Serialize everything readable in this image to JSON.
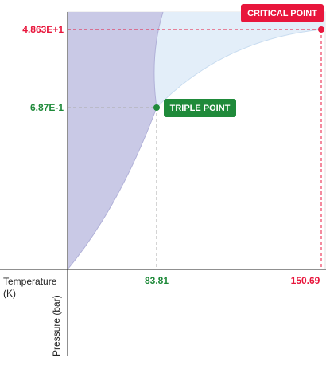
{
  "critical_point": {
    "label": "CRITICAL POINT",
    "pressure": "4.863E+1",
    "temperature": "150.69"
  },
  "triple_point": {
    "label": "TRIPLE POINT",
    "pressure": "6.87E-1",
    "temperature": "83.81"
  },
  "x_axis_label": "Temperature (K)",
  "y_axis_label": "Pressure (bar)"
}
